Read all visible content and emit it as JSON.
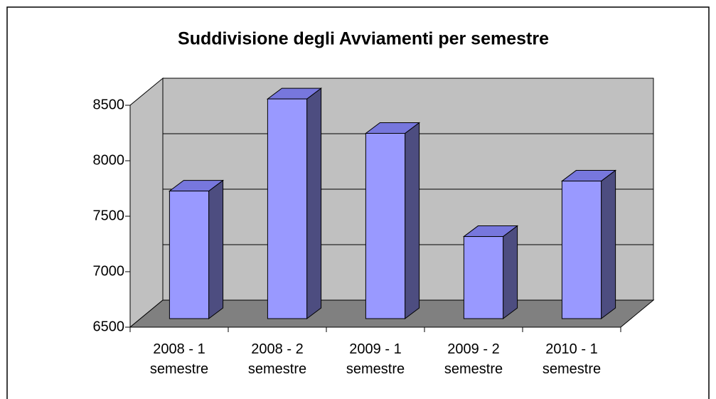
{
  "chart_data": {
    "type": "bar3d",
    "title": "Suddivisione degli Avviamenti per semestre",
    "categories": [
      "2008 - 1 semestre",
      "2008 - 2 semestre",
      "2009 - 1 semestre",
      "2009 - 2 semestre",
      "2010 - 1 semestre"
    ],
    "values": [
      7650,
      8480,
      8170,
      7240,
      7740
    ],
    "color": "#9999ff",
    "side_color": "#4d4d80",
    "top_color": "#7777dd",
    "ylim": [
      6500,
      8500
    ],
    "yticks": [
      6500,
      7000,
      7500,
      8000,
      8500
    ],
    "grid": true
  }
}
